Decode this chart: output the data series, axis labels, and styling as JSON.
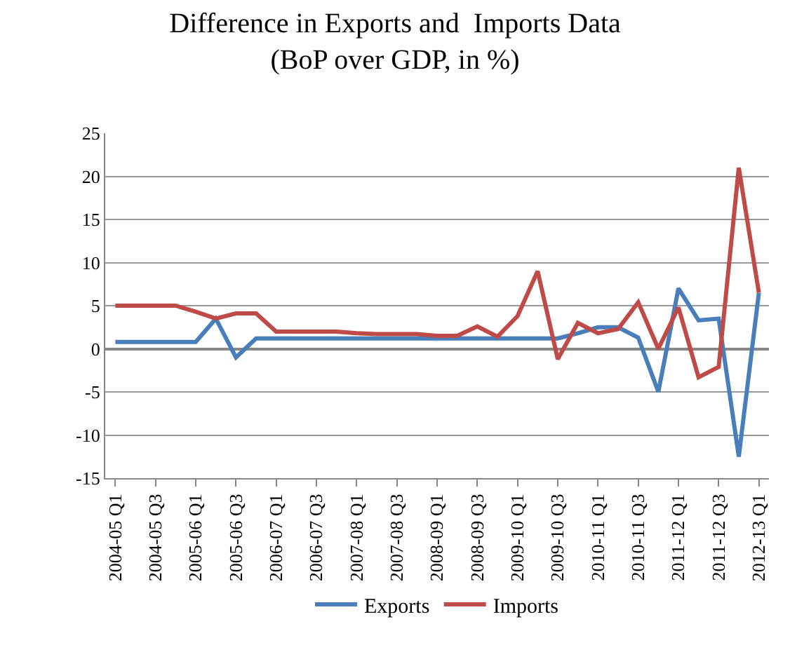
{
  "chart_data": {
    "type": "line",
    "title": "Difference in Exports and  Imports Data\n(BoP over GDP, in %)",
    "categories": [
      "2004-05 Q1",
      null,
      "2004-05 Q3",
      null,
      "2005-06 Q1",
      null,
      "2005-06 Q3",
      null,
      "2006-07 Q1",
      null,
      "2006-07 Q3",
      null,
      "2007-08 Q1",
      null,
      "2007-08 Q3",
      null,
      "2008-09 Q1",
      null,
      "2008-09 Q3",
      null,
      "2009-10 Q1",
      null,
      "2009-10 Q3",
      null,
      "2010-11 Q1",
      null,
      "2010-11 Q3",
      null,
      "2011-12 Q1",
      null,
      "2011-12 Q3",
      null,
      "2012-13 Q1"
    ],
    "series": [
      {
        "name": "Exports",
        "color": "#4a7ebb",
        "values": [
          0.8,
          0.8,
          0.8,
          0.8,
          0.8,
          3.5,
          -1,
          1.2,
          1.2,
          1.2,
          1.2,
          1.2,
          1.2,
          1.2,
          1.2,
          1.2,
          1.2,
          1.2,
          1.2,
          1.2,
          1.2,
          1.2,
          1.2,
          1.8,
          2.5,
          2.5,
          1.3,
          -5,
          7,
          3.3,
          3.5,
          -12.5,
          6.5
        ]
      },
      {
        "name": "Imports",
        "color": "#be4b48",
        "values": [
          5,
          5,
          5,
          5,
          4.3,
          3.5,
          4.1,
          4.1,
          2,
          2,
          2,
          2,
          1.8,
          1.7,
          1.7,
          1.7,
          1.5,
          1.5,
          2.6,
          1.4,
          3.8,
          9,
          -1.2,
          3,
          1.8,
          2.3,
          5.4,
          0,
          4.8,
          -3.3,
          -2.1,
          21,
          6.5
        ]
      }
    ],
    "ylim": [
      -15,
      25
    ],
    "yticks": [
      -15,
      -10,
      -5,
      0,
      5,
      10,
      15,
      20,
      25
    ],
    "grid": "y",
    "legend": "bottom",
    "marker": "none",
    "line_style": "solid"
  }
}
